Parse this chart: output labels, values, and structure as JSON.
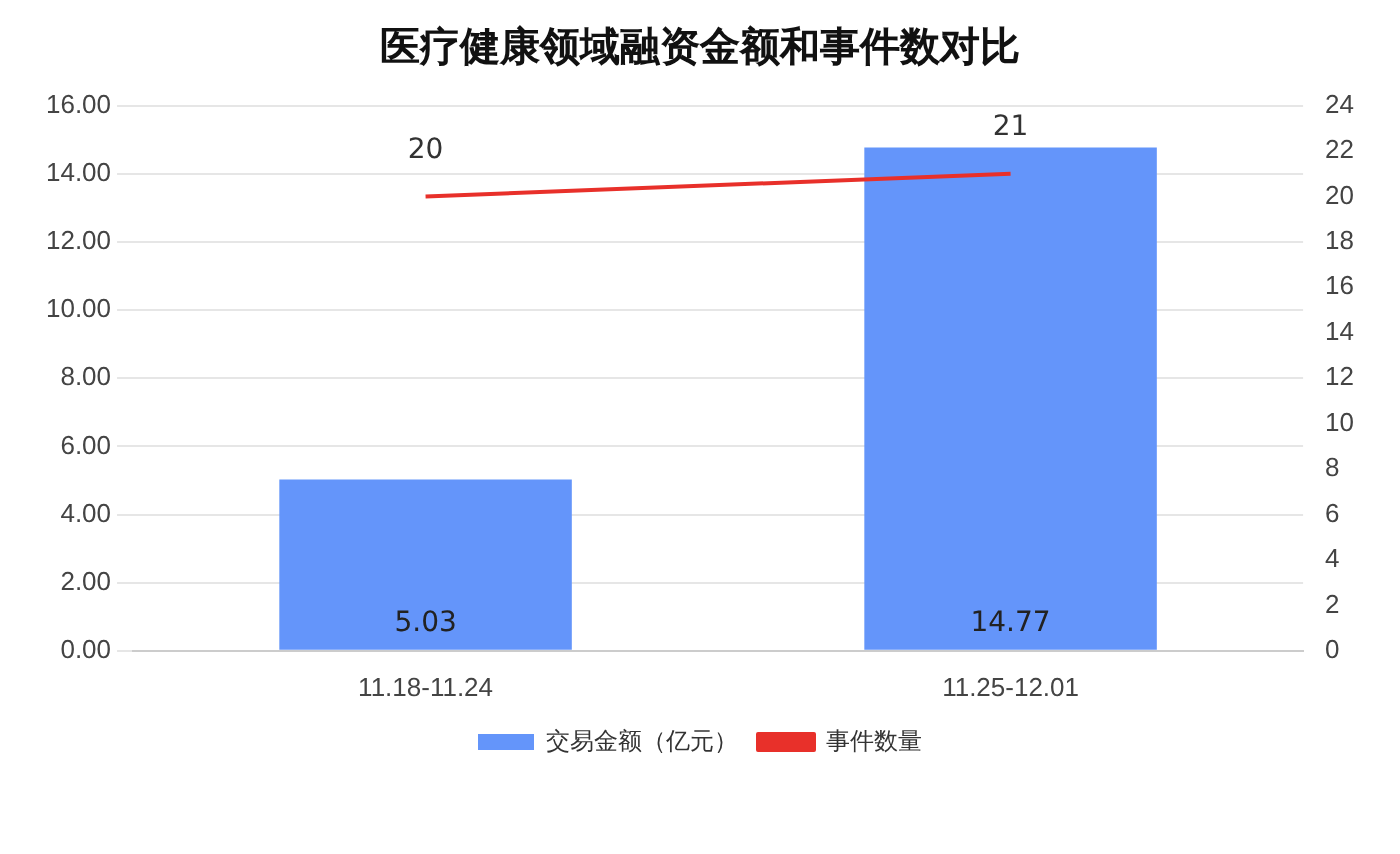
{
  "chart_data": {
    "type": "bar",
    "title": "医疗健康领域融资金额和事件数对比",
    "categories": [
      "11.18-11.24",
      "11.25-12.01"
    ],
    "series": [
      {
        "name": "交易金额（亿元）",
        "color": "#6495fa",
        "values": [
          5.03,
          14.77
        ]
      },
      {
        "name": "事件数量",
        "type": "line",
        "axis": "y2",
        "color": "#e8302a",
        "values": [
          20,
          21
        ]
      }
    ],
    "ylim": [
      0,
      16
    ],
    "yticks": [
      {
        "value": 0,
        "label": "0.00"
      },
      {
        "value": 2,
        "label": "2.00"
      },
      {
        "value": 4,
        "label": "4.00"
      },
      {
        "value": 6,
        "label": "6.00"
      },
      {
        "value": 8,
        "label": "8.00"
      },
      {
        "value": 10,
        "label": "10.00"
      },
      {
        "value": 12,
        "label": "12.00"
      },
      {
        "value": 14,
        "label": "14.00"
      },
      {
        "value": 16,
        "label": "16.00"
      }
    ],
    "y2lim": [
      0,
      24
    ],
    "y2ticks": [
      0,
      2,
      4,
      6,
      8,
      10,
      12,
      14,
      16,
      18,
      20,
      22,
      24
    ],
    "grid": "y",
    "legend": "bottom",
    "data_labels": true,
    "marker": "none"
  }
}
